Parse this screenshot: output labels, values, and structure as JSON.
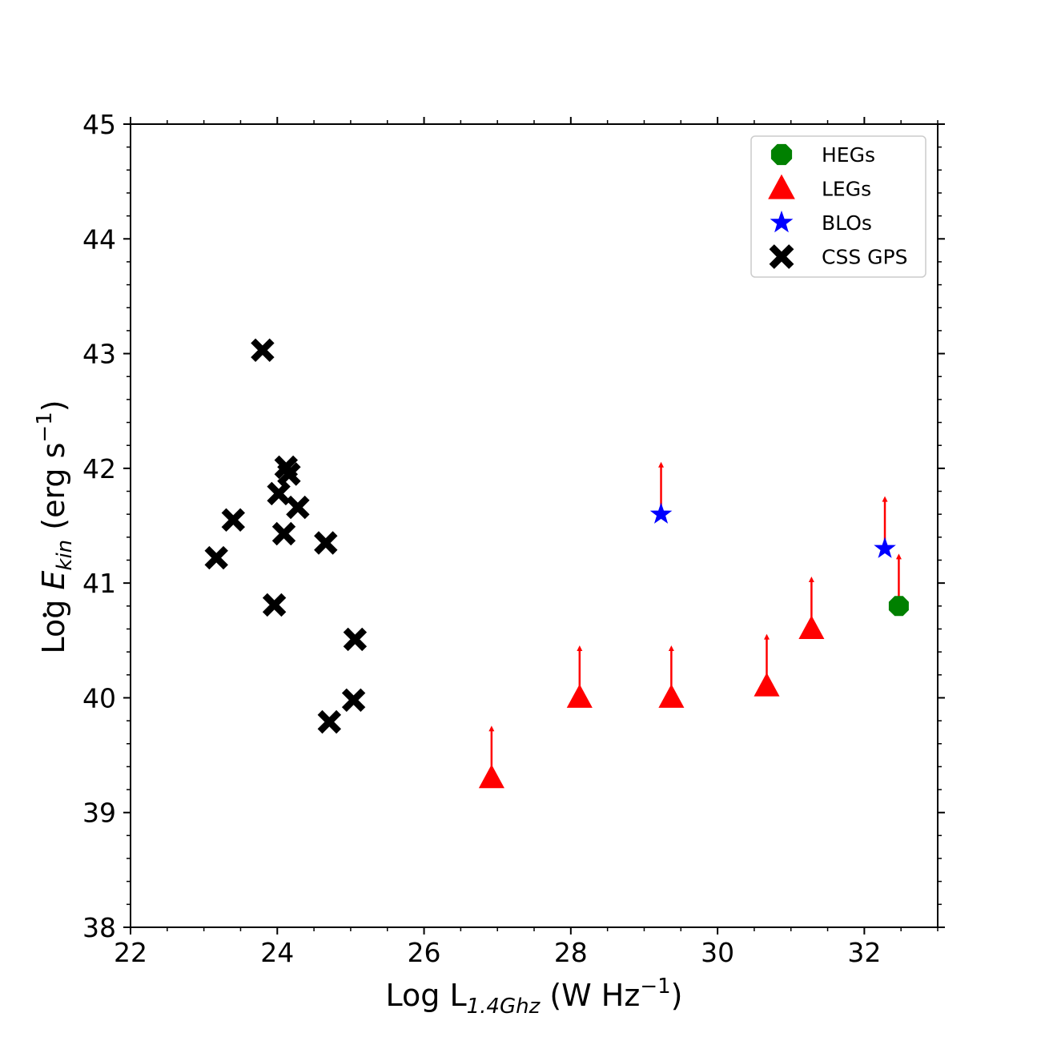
{
  "chart_data": {
    "type": "scatter",
    "xlabel": {
      "prefix": "Log L",
      "subscript": "1.4Ghz",
      "suffix": " (W Hz",
      "sup": "−1",
      "close": ")"
    },
    "ylabel": {
      "prefix": "Log ",
      "symbol": "E",
      "subscript": "kin",
      "suffix": " (erg s",
      "sup": "−1",
      "close": ")"
    },
    "xlim": [
      22,
      33
    ],
    "ylim": [
      38,
      45
    ],
    "x_major_ticks": [
      22,
      24,
      26,
      28,
      30,
      32
    ],
    "y_major_ticks": [
      38,
      39,
      40,
      41,
      42,
      43,
      44,
      45
    ],
    "x_tick_labels": [
      "22",
      "24",
      "26",
      "28",
      "30",
      "32"
    ],
    "y_tick_labels": [
      "38",
      "39",
      "40",
      "41",
      "42",
      "43",
      "44",
      "45"
    ],
    "legend_position": "top-right",
    "series": [
      {
        "name": "HEGs",
        "marker": "octagon",
        "color": "#008000",
        "lower_limit": true,
        "points": [
          {
            "x": 32.47,
            "y": 40.8
          }
        ]
      },
      {
        "name": "LEGs",
        "marker": "triangle",
        "color": "#ff0000",
        "lower_limit": true,
        "points": [
          {
            "x": 26.92,
            "y": 39.3
          },
          {
            "x": 28.12,
            "y": 40.0
          },
          {
            "x": 29.37,
            "y": 40.0
          },
          {
            "x": 30.67,
            "y": 40.1
          },
          {
            "x": 31.28,
            "y": 40.6
          }
        ]
      },
      {
        "name": "BLOs",
        "marker": "star",
        "color": "#0000ff",
        "lower_limit": true,
        "points": [
          {
            "x": 29.23,
            "y": 41.6
          },
          {
            "x": 32.28,
            "y": 41.3
          }
        ]
      },
      {
        "name": "CSS GPS",
        "marker": "x",
        "color": "#000000",
        "lower_limit": false,
        "points": [
          {
            "x": 23.8,
            "y": 43.03
          },
          {
            "x": 24.12,
            "y": 42.01
          },
          {
            "x": 24.16,
            "y": 41.95
          },
          {
            "x": 24.02,
            "y": 41.78
          },
          {
            "x": 24.28,
            "y": 41.66
          },
          {
            "x": 23.4,
            "y": 41.55
          },
          {
            "x": 24.09,
            "y": 41.43
          },
          {
            "x": 24.66,
            "y": 41.35
          },
          {
            "x": 23.17,
            "y": 41.22
          },
          {
            "x": 23.96,
            "y": 40.81
          },
          {
            "x": 25.06,
            "y": 40.51
          },
          {
            "x": 25.04,
            "y": 39.98
          },
          {
            "x": 24.71,
            "y": 39.79
          }
        ]
      }
    ],
    "arrow_color": "#ff0000",
    "arrow_length_dex": 0.45
  }
}
